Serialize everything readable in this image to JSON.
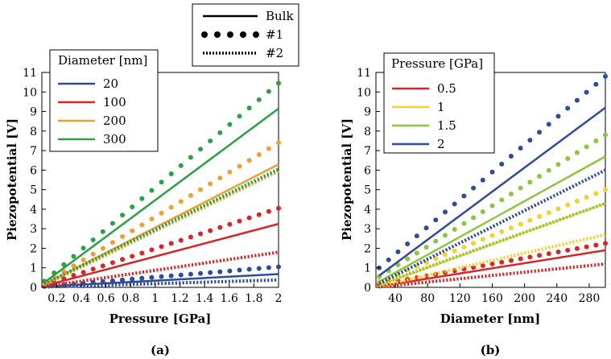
{
  "style_legend": {
    "entries": [
      {
        "label": "Bulk",
        "style": "solid"
      },
      {
        "label": "#1",
        "style": "dots"
      },
      {
        "label": "#2",
        "style": "dense-dots"
      }
    ]
  },
  "chart_data": [
    {
      "type": "line",
      "panel_label": "(a)",
      "xlabel": "Pressure [GPa]",
      "ylabel": "Piezopotential [V]",
      "xlim": [
        0.08,
        2.0
      ],
      "ylim": [
        0,
        11
      ],
      "xticks": [
        0.2,
        0.4,
        0.6,
        0.8,
        1,
        1.2,
        1.4,
        1.6,
        1.8,
        2
      ],
      "xtick_labels": [
        "0.2",
        "0.4",
        "0.6",
        "0.8",
        "1",
        "1.2",
        "1.4",
        "1.6",
        "1.8",
        "2"
      ],
      "yticks": [
        0,
        1,
        2,
        3,
        4,
        5,
        6,
        7,
        8,
        9,
        10,
        11
      ],
      "ytick_labels": [
        "0",
        "1",
        "2",
        "3",
        "4",
        "5",
        "6",
        "7",
        "8",
        "9",
        "10",
        "11"
      ],
      "legend_title": "Diameter [nm]",
      "legend_position": "top-left",
      "x_range": [
        0.1,
        2.0
      ],
      "series": [
        {
          "name": "20",
          "color": "#2f4b9b",
          "bulk": [
            0.04,
            0.68
          ],
          "n1": [
            0.05,
            1.05
          ],
          "n2": [
            0.02,
            0.38
          ]
        },
        {
          "name": "100",
          "color": "#d62728",
          "bulk": [
            0.08,
            3.25
          ],
          "n1": [
            0.12,
            4.05
          ],
          "n2": [
            0.04,
            1.8
          ]
        },
        {
          "name": "200",
          "color": "#f0a030",
          "bulk": [
            0.15,
            6.3
          ],
          "n1": [
            0.2,
            7.4
          ],
          "n2": [
            0.12,
            5.95
          ]
        },
        {
          "name": "300",
          "color": "#2ca046",
          "bulk": [
            0.25,
            9.15
          ],
          "n1": [
            0.32,
            10.45
          ],
          "n2": [
            0.18,
            6.05
          ]
        }
      ]
    },
    {
      "type": "line",
      "panel_label": "(b)",
      "xlabel": "Diameter [nm]",
      "ylabel": "Piezopotential [V]",
      "xlim": [
        16,
        300
      ],
      "ylim": [
        0,
        11
      ],
      "xticks": [
        40,
        80,
        120,
        160,
        200,
        240,
        280
      ],
      "xtick_labels": [
        "40",
        "80",
        "120",
        "160",
        "200",
        "240",
        "280"
      ],
      "yticks": [
        0,
        1,
        2,
        3,
        4,
        5,
        6,
        7,
        8,
        9,
        10,
        11
      ],
      "ytick_labels": [
        "0",
        "1",
        "2",
        "3",
        "4",
        "5",
        "6",
        "7",
        "8",
        "9",
        "10",
        "11"
      ],
      "legend_title": "Pressure [GPa]",
      "legend_position": "top-left",
      "x_range": [
        20,
        300
      ],
      "series": [
        {
          "name": "0.5",
          "color": "#d62728",
          "bulk": [
            0.05,
            1.9
          ],
          "n1": [
            0.15,
            2.25
          ],
          "n2": [
            0.02,
            1.2
          ]
        },
        {
          "name": "1",
          "color": "#f2d230",
          "bulk": [
            0.1,
            4.3
          ],
          "n1": [
            0.3,
            5.0
          ],
          "n2": [
            0.05,
            2.7
          ]
        },
        {
          "name": "1.5",
          "color": "#8cc63f",
          "bulk": [
            0.3,
            6.7
          ],
          "n1": [
            0.55,
            7.8
          ],
          "n2": [
            0.15,
            4.3
          ]
        },
        {
          "name": "2",
          "color": "#2f4b9b",
          "bulk": [
            0.6,
            9.2
          ],
          "n1": [
            1.0,
            10.8
          ],
          "n2": [
            0.2,
            6.0
          ]
        }
      ]
    }
  ]
}
